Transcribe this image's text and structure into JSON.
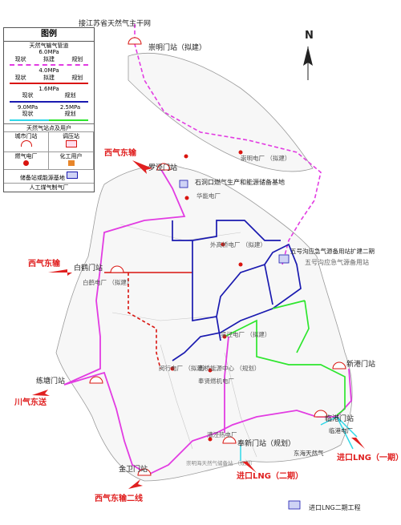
{
  "title_top": "接江苏省天然气主干网",
  "compass": "N",
  "legend": {
    "title": "图例",
    "pipeline_header": "天然气输气管道",
    "p60": "6.0MPa",
    "p40": "4.0MPa",
    "p16": "1.6MPa",
    "p90": "9.0MPa",
    "p25": "2.5MPa",
    "existing": "现状",
    "proposed": "拟建",
    "planned": "规划",
    "stations_header": "天然气站点及用户",
    "city_gate": "城市门站",
    "regulator": "调压站",
    "gas_power": "燃气电厂",
    "chem_user": "化工用户",
    "storage": "储备站或能源基地",
    "coal_gas": "人工煤气制气厂"
  },
  "stations": {
    "chongming": "崇明门站（拟建）",
    "chongming_power": "崇明电厂\n（拟建）",
    "luojing": "罗泾门站",
    "shidongkou": "石洞口燃气生产和能源储备基地",
    "huaneng": "华能电厂",
    "baihe": "白鹤门站",
    "baihe_power": "白鹤电厂\n（拟建）",
    "lianshi": "练塘门站",
    "jinwei": "金卫门站",
    "fengxin": "奉新门站（规划）",
    "lingang": "临港门站",
    "lingang_power": "临港电厂",
    "xingang": "新港门站",
    "wuhaogou1": "五号沟应急气源备用站扩建二期",
    "wuhaogou2": "五号沟应急气源备用站",
    "waigaoqiao": "外高桥电厂\n（拟建）",
    "minhang": "闵行电厂\n（拟建）",
    "fengxian": "奉贤燃机电厂",
    "nanqiao": "南桥能源中心\n（规划）",
    "wujing": "吴泾电厂\n（拟建）",
    "caojing": "漕泾热电厂",
    "pipe_label": "东海天然气",
    "chongming_sea": "崇明海天然气储备站\n（规划）"
  },
  "sources": {
    "west_east_1": "西气东输",
    "west_east_2": "西气东输",
    "sichuan": "川气东送",
    "west_east_line2": "西气东输二线",
    "lng1": "进口LNG（一期）",
    "lng2": "进口LNG（二期）",
    "lng2_project": "进口LNG二期工程"
  },
  "colors": {
    "p60": "#e23ce2",
    "p40": "#d9140f",
    "p16": "#1a1ab0",
    "p90": "#c83ad8",
    "p25": "#2ee62e",
    "p25b": "#30d8e8",
    "arrow": "#e02020"
  }
}
